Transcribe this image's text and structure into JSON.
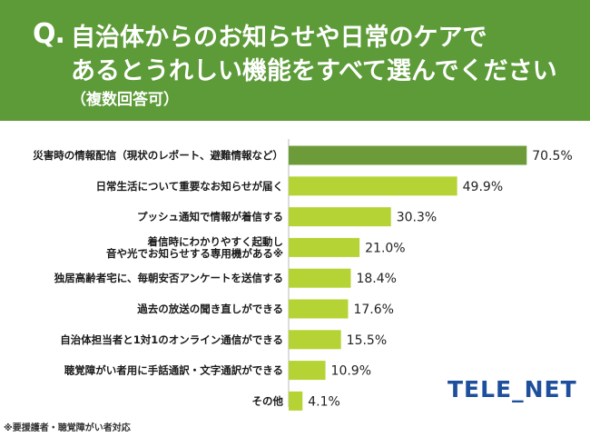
{
  "question": {
    "mark": "Q.",
    "line1": "自治体からのお知らせや日常のケアで",
    "line2": "あるとうれしい機能をすべて選んでください",
    "note": "（複数回答可）"
  },
  "chart_data": {
    "type": "bar",
    "orientation": "horizontal",
    "unit": "%",
    "xlim": [
      0,
      76
    ],
    "categories": [
      [
        "災害時の情報配信（現状のレポート、避難情報など）"
      ],
      [
        "日常生活について重要なお知らせが届く"
      ],
      [
        "プッシュ通知で情報が着信する"
      ],
      [
        "着信時にわかりやすく起動し",
        "音や光でお知らせする専用機がある※"
      ],
      [
        "独居高齢者宅に、毎朝安否アンケートを送信する"
      ],
      [
        "過去の放送の聞き直しができる"
      ],
      [
        "自治体担当者と1対1のオンライン通信ができる"
      ],
      [
        "聴覚障がい者用に手話通訳・文字通訳ができる"
      ],
      [
        "その他"
      ]
    ],
    "values": [
      70.5,
      49.9,
      30.3,
      21.0,
      18.4,
      17.6,
      15.5,
      10.9,
      4.1
    ],
    "value_labels": [
      "70.5%",
      "49.9%",
      "30.3%",
      "21.0%",
      "18.4%",
      "17.6%",
      "15.5%",
      "10.9%",
      "4.1%"
    ],
    "colors": {
      "top_bar": "#6d9b3a",
      "bars": "#b5d334",
      "axis": "#bbbbbb",
      "header": "#5c9b38"
    }
  },
  "footnote": "※要援護者・聴覚障がい者対応",
  "logo": "TELE_NET"
}
